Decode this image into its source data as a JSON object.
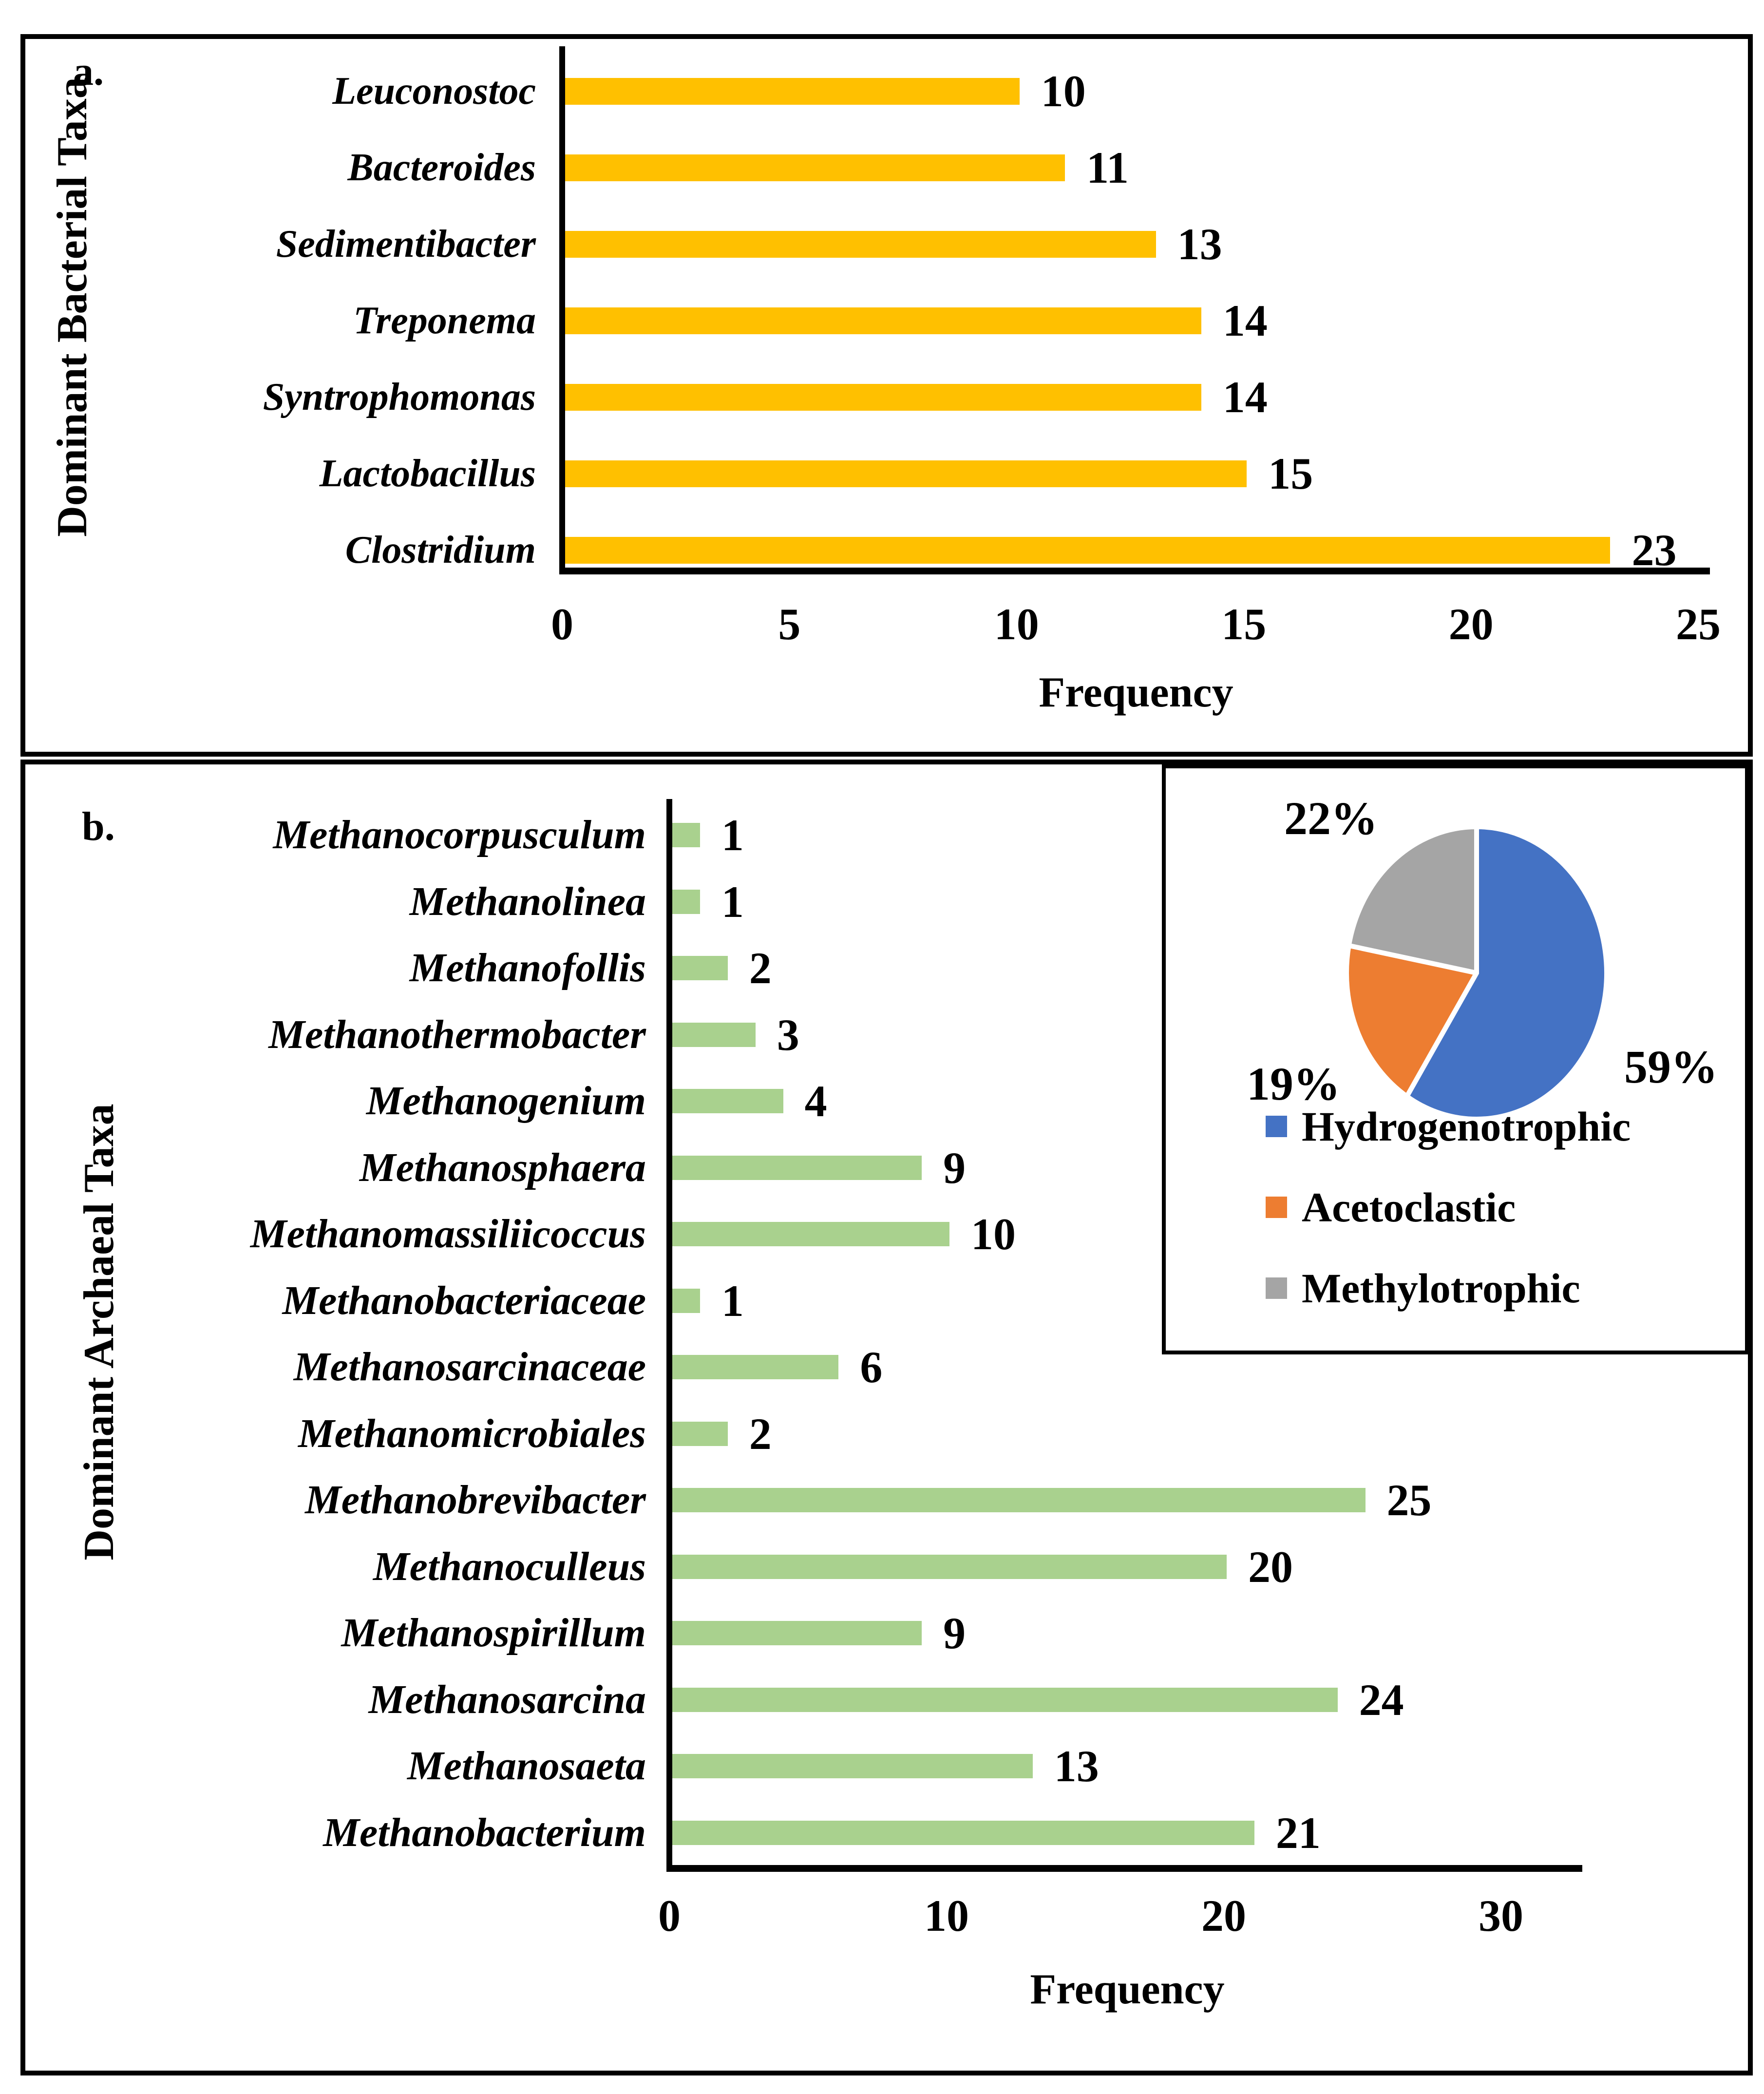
{
  "panels": {
    "a": {
      "panel_label": "a.",
      "y_axis_title": "Dominant Bacterial Taxa",
      "x_axis_title": "Frequency"
    },
    "b": {
      "panel_label": "b.",
      "y_axis_title": "Dominant Archaeal Taxa",
      "x_axis_title": "Frequency"
    }
  },
  "chart_data": [
    {
      "id": "dominant-bacterial-taxa",
      "type": "bar",
      "orientation": "horizontal",
      "panel": "a.",
      "categories": [
        "Leuconostoc",
        "Bacteroides",
        "Sedimentibacter",
        "Treponema",
        "Syntrophomonas",
        "Lactobacillus",
        "Clostridium"
      ],
      "values": [
        10,
        11,
        13,
        14,
        14,
        15,
        23
      ],
      "data_labels": [
        "10",
        "11",
        "13",
        "14",
        "14",
        "15",
        "23"
      ],
      "bar_color": "#FFC000",
      "xlabel": "Frequency",
      "ylabel": "Dominant Bacterial Taxa",
      "x_ticks": [
        0,
        5,
        10,
        15,
        20,
        25
      ],
      "xlim": [
        0,
        25
      ],
      "grid": false
    },
    {
      "id": "dominant-archaeal-taxa",
      "type": "bar",
      "orientation": "horizontal",
      "panel": "b.",
      "categories": [
        "Methanocorpusculum",
        "Methanolinea",
        "Methanofollis",
        "Methanothermobacter",
        "Methanogenium",
        "Methanosphaera",
        "Methanomassiliicoccus",
        "Methanobacteriaceae",
        "Methanosarcinaceae",
        "Methanomicrobiales",
        "Methanobrevibacter",
        "Methanoculleus",
        "Methanospirillum",
        "Methanosarcina",
        "Methanosaeta",
        "Methanobacterium"
      ],
      "values": [
        1,
        1,
        2,
        3,
        4,
        9,
        10,
        1,
        6,
        2,
        25,
        20,
        9,
        24,
        13,
        21
      ],
      "data_labels": [
        "1",
        "1",
        "2",
        "3",
        "4",
        "9",
        "10",
        "1",
        "6",
        "2",
        "25",
        "20",
        "9",
        "24",
        "13",
        "21"
      ],
      "bar_color": "#A9D18E",
      "xlabel": "Frequency",
      "ylabel": "Dominant Archaeal Taxa",
      "x_ticks": [
        0,
        10,
        20,
        30
      ],
      "xlim": [
        0,
        30
      ],
      "grid": false
    },
    {
      "id": "methanogenesis-pathways",
      "type": "pie",
      "labels": [
        "Hydrogenotrophic",
        "Acetoclastic",
        "Methylotrophic"
      ],
      "values": [
        59,
        19,
        22
      ],
      "slice_labels": [
        "59%",
        "19%",
        "22%"
      ],
      "colors": [
        "#4472C4",
        "#ED7D31",
        "#A5A5A5"
      ],
      "start_angle_deg": 0,
      "direction": "clockwise",
      "legend_position": "below",
      "separator_color": "#FFFFFF"
    }
  ]
}
